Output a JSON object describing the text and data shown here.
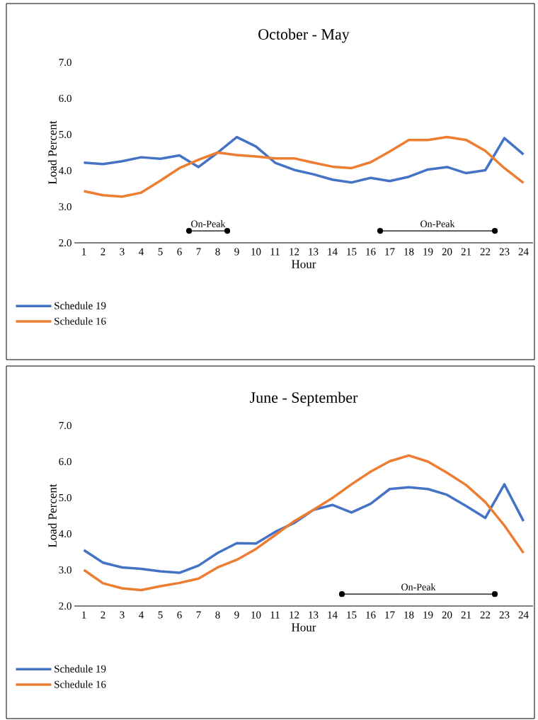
{
  "chart_data": [
    {
      "type": "line",
      "title": "October - May",
      "xlabel": "Hour",
      "ylabel": "Load Percent",
      "x": [
        1,
        2,
        3,
        4,
        5,
        6,
        7,
        8,
        9,
        10,
        11,
        12,
        13,
        14,
        15,
        16,
        17,
        18,
        19,
        20,
        21,
        22,
        23,
        24
      ],
      "xlim": [
        0.5,
        24.5
      ],
      "xticks": [
        1,
        2,
        3,
        4,
        5,
        6,
        7,
        8,
        9,
        10,
        11,
        12,
        13,
        14,
        15,
        16,
        17,
        18,
        19,
        20,
        21,
        22,
        23,
        24
      ],
      "ylim": [
        2,
        7
      ],
      "yticks": [
        {
          "value": 2,
          "label": "2.0"
        },
        {
          "value": 3,
          "label": "3.0"
        },
        {
          "value": 4,
          "label": "4.0"
        },
        {
          "value": 5,
          "label": "5.0"
        },
        {
          "value": 6,
          "label": "6.0"
        },
        {
          "value": 7,
          "label": "7.0"
        }
      ],
      "series": [
        {
          "name": "Schedule 19",
          "color": "#4472c4",
          "values": [
            4.22,
            4.18,
            4.26,
            4.37,
            4.33,
            4.42,
            4.1,
            4.5,
            4.93,
            4.67,
            4.22,
            4.02,
            3.9,
            3.75,
            3.67,
            3.8,
            3.71,
            3.83,
            4.03,
            4.1,
            3.93,
            4.01,
            4.9,
            4.45
          ]
        },
        {
          "name": "Schedule 16",
          "color": "#ed7d31",
          "values": [
            3.43,
            3.32,
            3.28,
            3.39,
            3.72,
            4.07,
            4.3,
            4.5,
            4.43,
            4.39,
            4.34,
            4.34,
            4.22,
            4.11,
            4.07,
            4.23,
            4.53,
            4.85,
            4.85,
            4.93,
            4.85,
            4.55,
            4.07,
            3.66
          ]
        },
        {
          "color": "#000000",
          "x": [
            6.5,
            8.5
          ],
          "values": [
            2.33,
            2.33
          ],
          "marker": "circle"
        },
        {
          "color": "#000000",
          "x": [
            16.5,
            22.5
          ],
          "values": [
            2.33,
            2.33
          ],
          "marker": "circle"
        }
      ],
      "annotations": [
        {
          "text": "On-Peak",
          "x": 7.5,
          "y": 2.33
        },
        {
          "text": "On-Peak",
          "x": 19.5,
          "y": 2.33
        }
      ],
      "legend": "bottom",
      "marker": "none"
    },
    {
      "type": "line",
      "title": "June - September",
      "xlabel": "Hour",
      "ylabel": "Load Percent",
      "x": [
        1,
        2,
        3,
        4,
        5,
        6,
        7,
        8,
        9,
        10,
        11,
        12,
        13,
        14,
        15,
        16,
        17,
        18,
        19,
        20,
        21,
        22,
        23,
        24
      ],
      "xlim": [
        0.5,
        24.5
      ],
      "xticks": [
        1,
        2,
        3,
        4,
        5,
        6,
        7,
        8,
        9,
        10,
        11,
        12,
        13,
        14,
        15,
        16,
        17,
        18,
        19,
        20,
        21,
        22,
        23,
        24
      ],
      "ylim": [
        2,
        7
      ],
      "yticks": [
        {
          "value": 2,
          "label": "2.0"
        },
        {
          "value": 3,
          "label": "3.0"
        },
        {
          "value": 4,
          "label": "4.0"
        },
        {
          "value": 5,
          "label": "5.0"
        },
        {
          "value": 6,
          "label": "6.0"
        },
        {
          "value": 7,
          "label": "7.0"
        }
      ],
      "series": [
        {
          "name": "Schedule 19",
          "color": "#4472c4",
          "values": [
            3.55,
            3.2,
            3.07,
            3.03,
            2.96,
            2.92,
            3.12,
            3.47,
            3.74,
            3.73,
            4.05,
            4.3,
            4.66,
            4.8,
            4.59,
            4.83,
            5.24,
            5.29,
            5.24,
            5.08,
            4.77,
            4.44,
            5.37,
            4.35
          ]
        },
        {
          "name": "Schedule 16",
          "color": "#ed7d31",
          "values": [
            3.0,
            2.63,
            2.49,
            2.44,
            2.55,
            2.64,
            2.76,
            3.07,
            3.28,
            3.58,
            3.96,
            4.35,
            4.66,
            4.99,
            5.37,
            5.72,
            6.01,
            6.17,
            6.0,
            5.69,
            5.35,
            4.88,
            4.23,
            3.47
          ]
        },
        {
          "color": "#000000",
          "x": [
            14.5,
            22.5
          ],
          "values": [
            2.33,
            2.33
          ],
          "marker": "circle"
        }
      ],
      "annotations": [
        {
          "text": "On-Peak",
          "x": 18.5,
          "y": 2.33
        }
      ],
      "legend": "bottom",
      "marker": "none"
    }
  ]
}
